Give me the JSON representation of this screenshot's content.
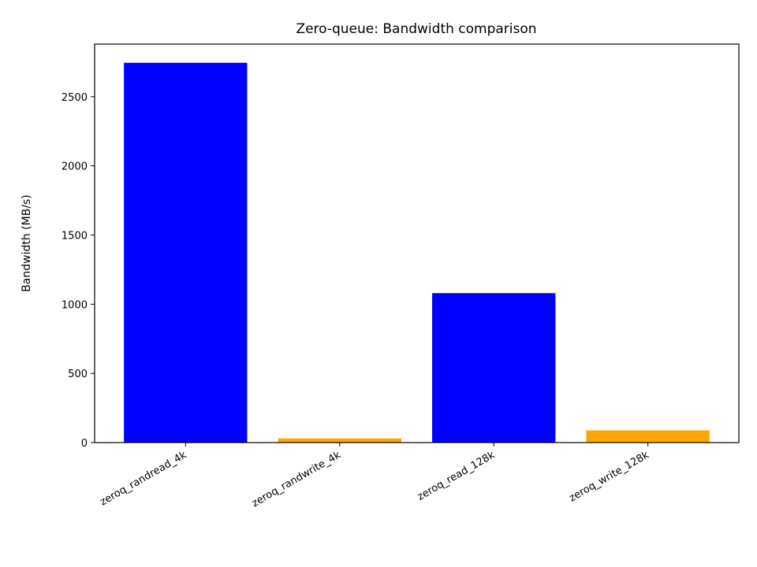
{
  "chart_data": {
    "type": "bar",
    "title": "Zero-queue: Bandwidth comparison",
    "xlabel": "",
    "ylabel": "Bandwidth (MB/s)",
    "categories": [
      "zeroq_randread_4k",
      "zeroq_randwrite_4k",
      "zeroq_read_128k",
      "zeroq_write_128k"
    ],
    "values": [
      2745,
      30,
      1080,
      88
    ],
    "bar_colors": [
      "#0000ff",
      "#ffa500",
      "#0000ff",
      "#ffa500"
    ],
    "ylim": [
      0,
      2880
    ],
    "yticks": [
      0,
      500,
      1000,
      1500,
      2000,
      2500
    ],
    "ytick_labels": [
      "0",
      "500",
      "1000",
      "1500",
      "2000",
      "2500"
    ],
    "grid": false,
    "legend": false,
    "xtick_rotation": 30
  }
}
